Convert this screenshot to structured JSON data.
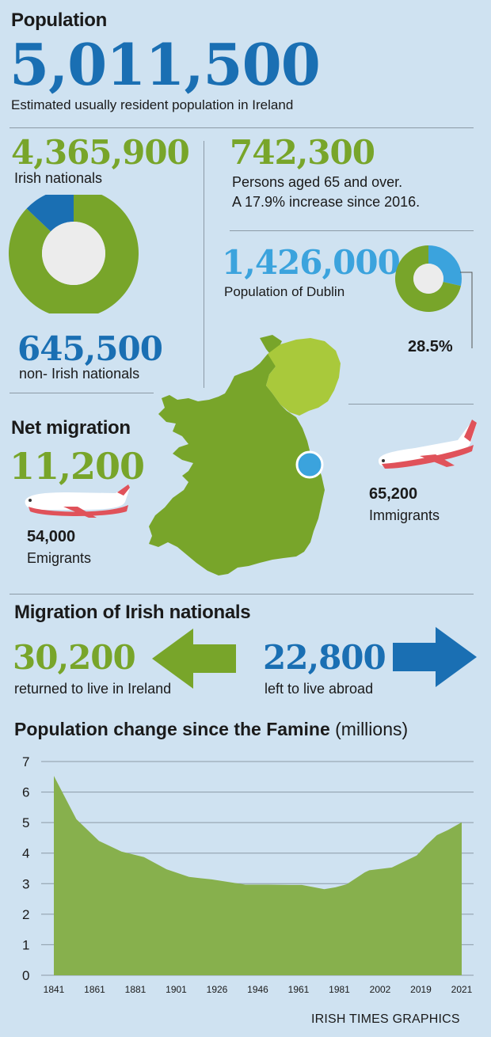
{
  "colors": {
    "background": "#cfe2f1",
    "green": "#78a52a",
    "lime": "#a9c93b",
    "blue": "#1a6fb3",
    "light_blue": "#3ba3dd",
    "plane_red": "#e0525a",
    "area_fill": "#87b04d"
  },
  "population": {
    "heading": "Population",
    "total": "5,011,500",
    "total_caption": "Estimated usually resident population in Ireland"
  },
  "nationals": {
    "irish_value": "4,365,900",
    "irish_label": "Irish nationals",
    "non_irish_value": "645,500",
    "non_irish_label": "non- Irish nationals",
    "irish_share": 0.871
  },
  "elderly": {
    "value": "742,300",
    "line1": "Persons aged 65 and over.",
    "line2": "A 17.9% increase since 2016."
  },
  "dublin": {
    "value": "1,426,000",
    "label": "Population of Dublin",
    "share_label": "28.5%",
    "share": 0.285
  },
  "net_migration": {
    "heading": "Net migration",
    "value": "11,200",
    "emigrants_value": "54,000",
    "emigrants_label": "Emigrants",
    "immigrants_value": "65,200",
    "immigrants_label": "Immigrants"
  },
  "irish_migration": {
    "heading": "Migration of Irish nationals",
    "returned_value": "30,200",
    "returned_label": "returned to live in Ireland",
    "left_value": "22,800",
    "left_label": "left to live abroad"
  },
  "chart_heading": {
    "bold": "Population change since the Famine",
    "unit": "(millions)"
  },
  "credit": "IRISH TIMES GRAPHICS",
  "chart_data": {
    "type": "area",
    "title": "Population change since the Famine (millions)",
    "x": [
      1841,
      1851,
      1861,
      1871,
      1881,
      1891,
      1901,
      1911,
      1926,
      1936,
      1946,
      1951,
      1961,
      1966,
      1971,
      1979,
      1981,
      1991,
      2002,
      2006,
      2011,
      2016,
      2022
    ],
    "values": [
      6.53,
      5.11,
      4.4,
      4.05,
      3.87,
      3.47,
      3.22,
      3.14,
      2.97,
      2.97,
      2.96,
      2.96,
      2.82,
      2.88,
      2.98,
      3.37,
      3.44,
      3.53,
      3.92,
      4.24,
      4.59,
      4.76,
      5.01
    ],
    "x_tick_labels": [
      "1841",
      "1861",
      "1881",
      "1901",
      "1926",
      "1946",
      "1961",
      "1981",
      "2002",
      "2019",
      "2021"
    ],
    "y_ticks": [
      0,
      1,
      2,
      3,
      4,
      5,
      6,
      7
    ],
    "ylim": [
      0,
      7
    ],
    "grid": true
  }
}
